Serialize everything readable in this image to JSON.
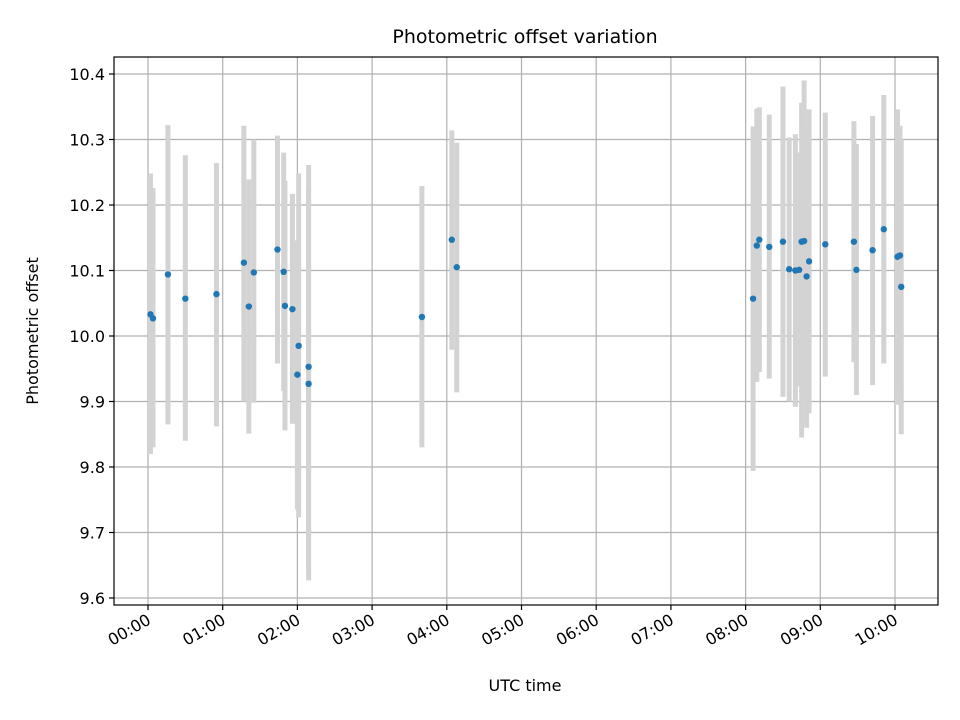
{
  "chart_data": {
    "type": "scatter",
    "title": "Photometric offset variation",
    "xlabel": "UTC time",
    "ylabel": "Photometric offset",
    "x_tick_labels": [
      "00:00",
      "01:00",
      "02:00",
      "03:00",
      "04:00",
      "05:00",
      "06:00",
      "07:00",
      "08:00",
      "09:00",
      "10:00"
    ],
    "y_tick_labels": [
      "9.6",
      "9.7",
      "9.8",
      "9.9",
      "10.0",
      "10.1",
      "10.2",
      "10.3",
      "10.4"
    ],
    "grid": true,
    "legend": "none",
    "colors": {
      "point": "#1f77b4",
      "errorbar": "#d3d3d3",
      "grid": "#b0b0b0"
    },
    "points": [
      {
        "x": "00:02",
        "y": 10.033,
        "lo": 9.82,
        "hi": 10.248
      },
      {
        "x": "00:04",
        "y": 10.027,
        "lo": 9.83,
        "hi": 10.226
      },
      {
        "x": "00:16",
        "y": 10.094,
        "lo": 9.865,
        "hi": 10.322
      },
      {
        "x": "00:30",
        "y": 10.057,
        "lo": 9.84,
        "hi": 10.276
      },
      {
        "x": "00:55",
        "y": 10.064,
        "lo": 9.862,
        "hi": 10.264
      },
      {
        "x": "01:17",
        "y": 10.112,
        "lo": 9.9,
        "hi": 10.321
      },
      {
        "x": "01:21",
        "y": 10.045,
        "lo": 9.851,
        "hi": 10.239
      },
      {
        "x": "01:25",
        "y": 10.097,
        "lo": 9.898,
        "hi": 10.3
      },
      {
        "x": "01:44",
        "y": 10.132,
        "lo": 9.958,
        "hi": 10.306
      },
      {
        "x": "01:49",
        "y": 10.098,
        "lo": 9.916,
        "hi": 10.28
      },
      {
        "x": "01:50",
        "y": 10.046,
        "lo": 9.856,
        "hi": 10.237
      },
      {
        "x": "01:56",
        "y": 10.041,
        "lo": 9.866,
        "hi": 10.217
      },
      {
        "x": "02:00",
        "y": 9.941,
        "lo": 9.735,
        "hi": 10.146
      },
      {
        "x": "02:01",
        "y": 9.985,
        "lo": 9.723,
        "hi": 10.248
      },
      {
        "x": "02:09",
        "y": 9.953,
        "lo": 9.645,
        "hi": 10.261
      },
      {
        "x": "02:09",
        "y": 9.927,
        "lo": 9.627,
        "hi": 10.227
      },
      {
        "x": "03:40",
        "y": 10.029,
        "lo": 9.83,
        "hi": 10.229
      },
      {
        "x": "04:04",
        "y": 10.147,
        "lo": 9.979,
        "hi": 10.314
      },
      {
        "x": "04:08",
        "y": 10.105,
        "lo": 9.914,
        "hi": 10.295
      },
      {
        "x": "08:06",
        "y": 10.057,
        "lo": 9.794,
        "hi": 10.32
      },
      {
        "x": "08:09",
        "y": 10.138,
        "lo": 9.93,
        "hi": 10.347
      },
      {
        "x": "08:11",
        "y": 10.147,
        "lo": 9.945,
        "hi": 10.349
      },
      {
        "x": "08:19",
        "y": 10.136,
        "lo": 9.935,
        "hi": 10.338
      },
      {
        "x": "08:30",
        "y": 10.144,
        "lo": 9.907,
        "hi": 10.381
      },
      {
        "x": "08:35",
        "y": 10.102,
        "lo": 9.9,
        "hi": 10.303
      },
      {
        "x": "08:40",
        "y": 10.1,
        "lo": 9.892,
        "hi": 10.308
      },
      {
        "x": "08:43",
        "y": 10.101,
        "lo": 9.923,
        "hi": 10.28
      },
      {
        "x": "08:45",
        "y": 10.144,
        "lo": 9.845,
        "hi": 10.356
      },
      {
        "x": "08:47",
        "y": 10.145,
        "lo": 9.898,
        "hi": 10.39
      },
      {
        "x": "08:49",
        "y": 10.091,
        "lo": 9.86,
        "hi": 10.321
      },
      {
        "x": "08:51",
        "y": 10.114,
        "lo": 9.882,
        "hi": 10.346
      },
      {
        "x": "09:04",
        "y": 10.14,
        "lo": 9.938,
        "hi": 10.341
      },
      {
        "x": "09:27",
        "y": 10.144,
        "lo": 9.96,
        "hi": 10.328
      },
      {
        "x": "09:29",
        "y": 10.101,
        "lo": 9.91,
        "hi": 10.293
      },
      {
        "x": "09:42",
        "y": 10.131,
        "lo": 9.925,
        "hi": 10.336
      },
      {
        "x": "09:51",
        "y": 10.163,
        "lo": 9.958,
        "hi": 10.368
      },
      {
        "x": "10:02",
        "y": 10.121,
        "lo": 9.895,
        "hi": 10.346
      },
      {
        "x": "10:04",
        "y": 10.123,
        "lo": 9.925,
        "hi": 10.321
      },
      {
        "x": "10:05",
        "y": 10.075,
        "lo": 9.85,
        "hi": 10.3
      }
    ]
  }
}
